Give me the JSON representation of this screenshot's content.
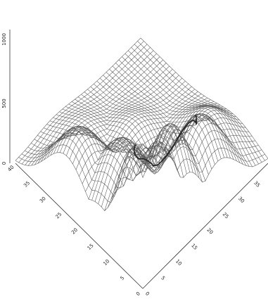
{
  "chart_data": {
    "type": "surface",
    "title": "",
    "xlabel": "",
    "ylabel": "",
    "zlabel": "",
    "grid": false,
    "legend": "none",
    "line_color": "#555555",
    "shading_color": "#222222",
    "background_color": "#ffffff",
    "z_ticks": [
      "1000",
      "500",
      "0"
    ],
    "z_range": [
      0,
      1000
    ],
    "x_ticks": [
      "0",
      "5",
      "10",
      "15",
      "20",
      "25",
      "30",
      "35",
      "40"
    ],
    "y_ticks": [
      "0",
      "5",
      "10",
      "15",
      "20",
      "25",
      "30",
      "35",
      "40"
    ],
    "x_range": [
      0,
      40
    ],
    "y_range": [
      0,
      40
    ],
    "peaks": [
      {
        "x": 2,
        "y": 3,
        "z": 1000
      },
      {
        "x": 7,
        "y": 2,
        "z": 900
      },
      {
        "x": 14,
        "y": 5,
        "z": 820
      },
      {
        "x": 8,
        "y": 14,
        "z": 620
      },
      {
        "x": 4,
        "y": 24,
        "z": 560
      },
      {
        "x": 24,
        "y": 6,
        "z": 640
      },
      {
        "x": 30,
        "y": 10,
        "z": 420
      },
      {
        "x": 20,
        "y": 22,
        "z": 260
      },
      {
        "x": 12,
        "y": 30,
        "z": 220
      }
    ],
    "valley": {
      "x": 22,
      "y": 14,
      "z": 60
    }
  }
}
